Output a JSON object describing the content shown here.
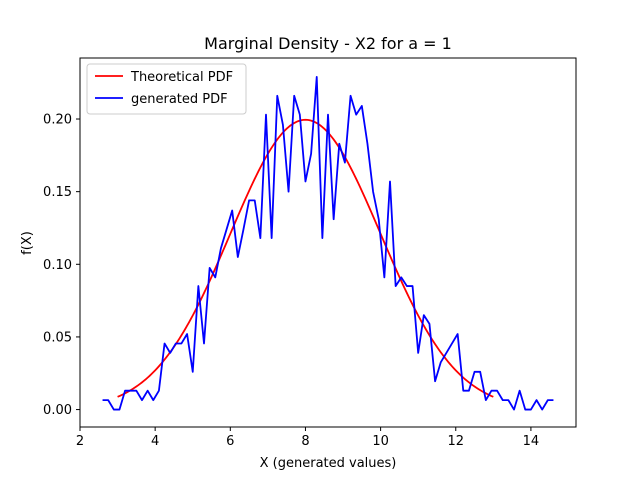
{
  "chart_data": {
    "type": "line",
    "title": "Marginal Density - X2 for a = 1",
    "xlabel": "X (generated values)",
    "ylabel": "f(X)",
    "xlim": [
      2.0,
      15.2
    ],
    "ylim": [
      -0.012,
      0.242
    ],
    "xticks": [
      2,
      4,
      6,
      8,
      10,
      12,
      14
    ],
    "yticks": [
      0.0,
      0.05,
      0.1,
      0.15,
      0.2
    ],
    "ytick_labels": [
      "0.00",
      "0.05",
      "0.10",
      "0.15",
      "0.20"
    ],
    "grid": false,
    "legend_position": "top-left",
    "series": [
      {
        "name": "Theoretical PDF",
        "color": "#ff0000",
        "kind": "normal_pdf",
        "mean": 8,
        "sd": 2,
        "x_range": [
          3,
          13
        ]
      },
      {
        "name": "generated PDF",
        "color": "#0000ff",
        "x": [
          2.6,
          2.75,
          2.9,
          3.05,
          3.2,
          3.35,
          3.5,
          3.65,
          3.8,
          3.95,
          4.1,
          4.25,
          4.4,
          4.55,
          4.7,
          4.85,
          5.0,
          5.15,
          5.3,
          5.45,
          5.6,
          5.75,
          5.9,
          6.05,
          6.2,
          6.35,
          6.5,
          6.65,
          6.8,
          6.95,
          7.1,
          7.25,
          7.4,
          7.55,
          7.7,
          7.85,
          8.0,
          8.15,
          8.3,
          8.45,
          8.6,
          8.75,
          8.9,
          9.05,
          9.2,
          9.35,
          9.5,
          9.65,
          9.8,
          9.95,
          10.1,
          10.25,
          10.4,
          10.55,
          10.7,
          10.85,
          11.0,
          11.15,
          11.3,
          11.45,
          11.6,
          11.75,
          11.9,
          12.05,
          12.2,
          12.35,
          12.5,
          12.65,
          12.8,
          12.95,
          13.1,
          13.25,
          13.4,
          13.55,
          13.7,
          13.85,
          14.0,
          14.15,
          14.3,
          14.45,
          14.6
        ],
        "y": [
          0.0065,
          0.0065,
          0.0,
          0.0,
          0.013,
          0.013,
          0.013,
          0.0065,
          0.013,
          0.0065,
          0.013,
          0.0455,
          0.039,
          0.0455,
          0.0455,
          0.052,
          0.026,
          0.085,
          0.0455,
          0.0975,
          0.091,
          0.111,
          0.124,
          0.137,
          0.105,
          0.124,
          0.144,
          0.144,
          0.118,
          0.203,
          0.118,
          0.216,
          0.196,
          0.15,
          0.216,
          0.203,
          0.157,
          0.176,
          0.229,
          0.118,
          0.203,
          0.131,
          0.183,
          0.17,
          0.216,
          0.203,
          0.209,
          0.183,
          0.15,
          0.131,
          0.091,
          0.157,
          0.085,
          0.091,
          0.085,
          0.085,
          0.039,
          0.065,
          0.059,
          0.0195,
          0.0325,
          0.039,
          0.0455,
          0.052,
          0.013,
          0.013,
          0.026,
          0.026,
          0.0065,
          0.013,
          0.013,
          0.0065,
          0.0065,
          0.0,
          0.013,
          0.0,
          0.0,
          0.0065,
          0.0,
          0.0065,
          0.0065
        ]
      }
    ]
  }
}
